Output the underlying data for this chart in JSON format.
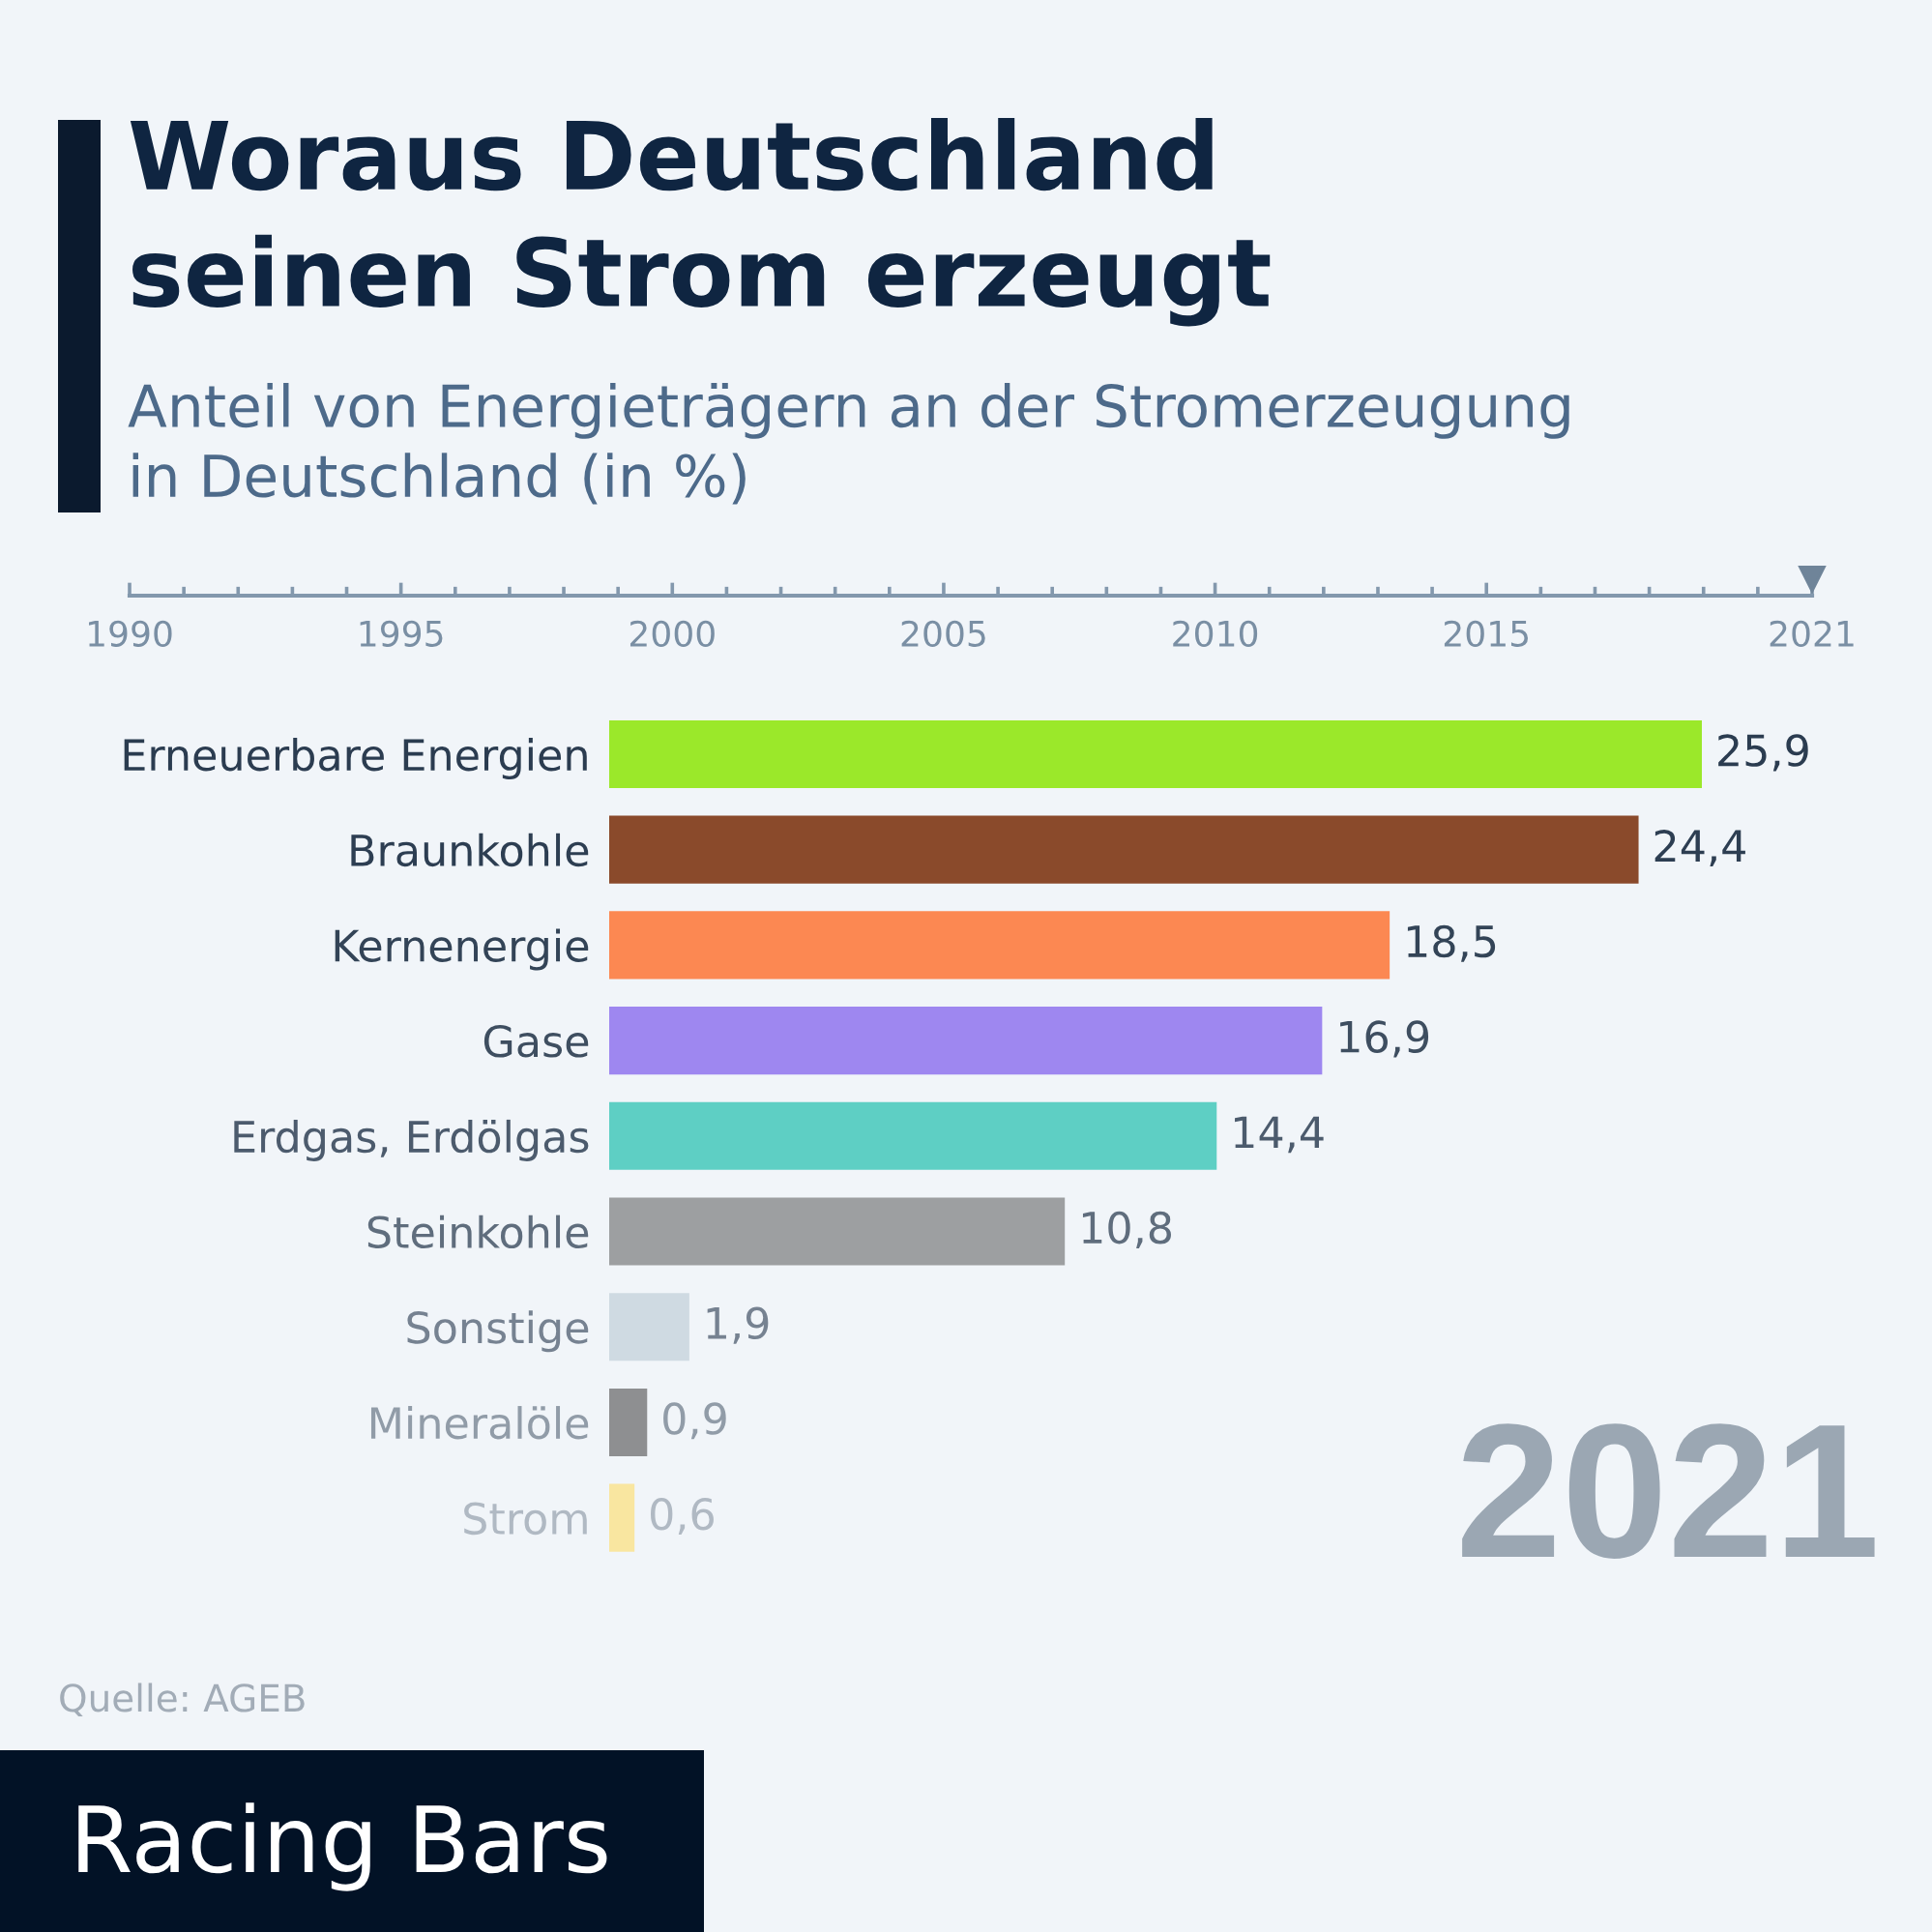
{
  "chart_data": {
    "type": "bar",
    "orientation": "horizontal",
    "title": "Woraus Deutschland\nseinen Strom erzeugt",
    "subtitle": "Anteil von Energieträgern an der Stromerzeugung\nin Deutschland (in %)",
    "categories": [
      "Erneuerbare Energien",
      "Braunkohle",
      "Kernenergie",
      "Gase",
      "Erdgas, Erdölgas",
      "Steinkohle",
      "Sonstige",
      "Mineralöle",
      "Strom"
    ],
    "values": [
      25.9,
      24.4,
      18.5,
      16.9,
      14.4,
      10.8,
      1.9,
      0.9,
      0.6
    ],
    "colors": [
      "#9be82a",
      "#8a4a2b",
      "#fc8852",
      "#9e87f0",
      "#5ecfc4",
      "#9d9fa1",
      "#cfdae2",
      "#8e8f91",
      "#f9e6a0"
    ],
    "value_labels": [
      "25,9",
      "24,4",
      "18,5",
      "16,9",
      "14,4",
      "10,8",
      "1,9",
      "0,9",
      "0,6"
    ],
    "x2lim": [
      1990,
      2021
    ],
    "x2ticks": [
      1990,
      1995,
      2000,
      2005,
      2010,
      2015,
      2021
    ],
    "annotations": [
      "2021",
      "Quelle: AGEB",
      "Racing Bars"
    ]
  }
}
